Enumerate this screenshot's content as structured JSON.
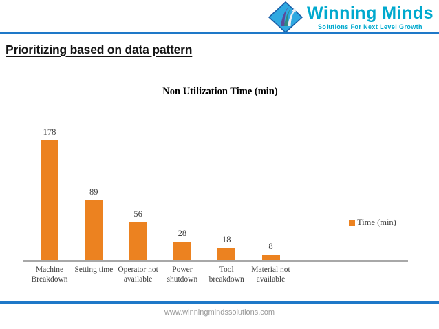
{
  "header": {
    "brand": "Winning Minds",
    "tagline": "Solutions For Next Level Growth"
  },
  "title": "Prioritizing based on data pattern",
  "chart_data": {
    "type": "bar",
    "title": "Non Utilization Time (min)",
    "categories": [
      "Machine Breakdown",
      "Setting time",
      "Operator not available",
      "Power shutdown",
      "Tool breakdown",
      "Material not available"
    ],
    "category_lines": [
      [
        "Machine",
        "Breakdown"
      ],
      [
        "Setting time"
      ],
      [
        "Operator not",
        "available"
      ],
      [
        "Power",
        "shutdown"
      ],
      [
        "Tool",
        "breakdown"
      ],
      [
        "Material not",
        "available"
      ]
    ],
    "values": [
      178,
      89,
      56,
      28,
      18,
      8
    ],
    "series_name": "Time (min)",
    "legend_position": "right",
    "xlabel": "",
    "ylabel": "",
    "ylim": [
      0,
      200
    ],
    "grid": false,
    "bar_color": "#EC8220"
  },
  "footer": {
    "url": "www.winningmindssolutions.com"
  },
  "colors": {
    "accent_blue": "#1E78C8",
    "brand_teal": "#00A9CE",
    "bar_orange": "#EC8220",
    "axis_gray": "#A8A8A8",
    "label_gray": "#3F3F3F",
    "footer_gray": "#9A9A9A",
    "diamond_blue": "#2FA9E1",
    "diamond_border": "#1B5FA8",
    "swoosh_purple": "#5B4A9B",
    "swoosh_teal": "#2E8B83"
  }
}
